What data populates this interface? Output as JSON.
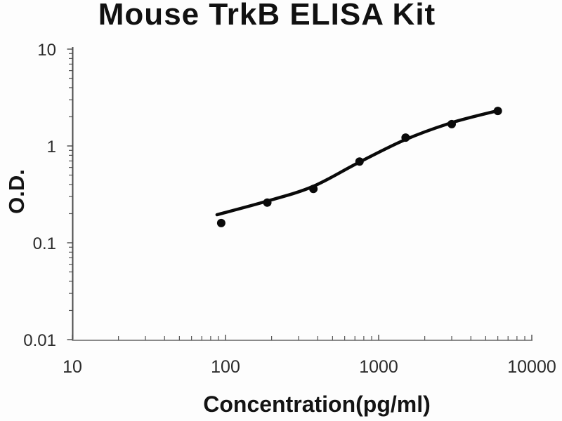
{
  "chart_data": {
    "type": "scatter",
    "title": "Mouse TrkB ELISA Kit",
    "xlabel": "Concentration(pg/ml)",
    "ylabel": "O.D.",
    "x_scale": "log",
    "y_scale": "log",
    "xlim": [
      10,
      10000
    ],
    "ylim": [
      0.01,
      10
    ],
    "x_ticks": [
      10,
      100,
      1000,
      10000
    ],
    "y_ticks": [
      0.01,
      0.1,
      1,
      10
    ],
    "grid": false,
    "legend": false,
    "series": [
      {
        "name": "standard-points",
        "type": "scatter",
        "x": [
          93.75,
          187.5,
          375,
          750,
          1500,
          3000,
          6000
        ],
        "y": [
          0.16,
          0.26,
          0.36,
          0.69,
          1.22,
          1.68,
          2.3
        ]
      },
      {
        "name": "fitted-curve",
        "type": "line",
        "x": [
          88,
          185,
          370,
          735,
          1490,
          2970,
          5900
        ],
        "y": [
          0.195,
          0.268,
          0.38,
          0.67,
          1.16,
          1.73,
          2.3
        ]
      }
    ],
    "colors": {
      "points": "#0a0a0a",
      "curve": "#0a0a0a",
      "y_axis": "#4a4a4a",
      "x_axis": "#8a8a8a",
      "ticks": "#555555",
      "tick_labels": "#2b2b2b",
      "title": "#111111",
      "background": "#fdfdfd"
    }
  }
}
